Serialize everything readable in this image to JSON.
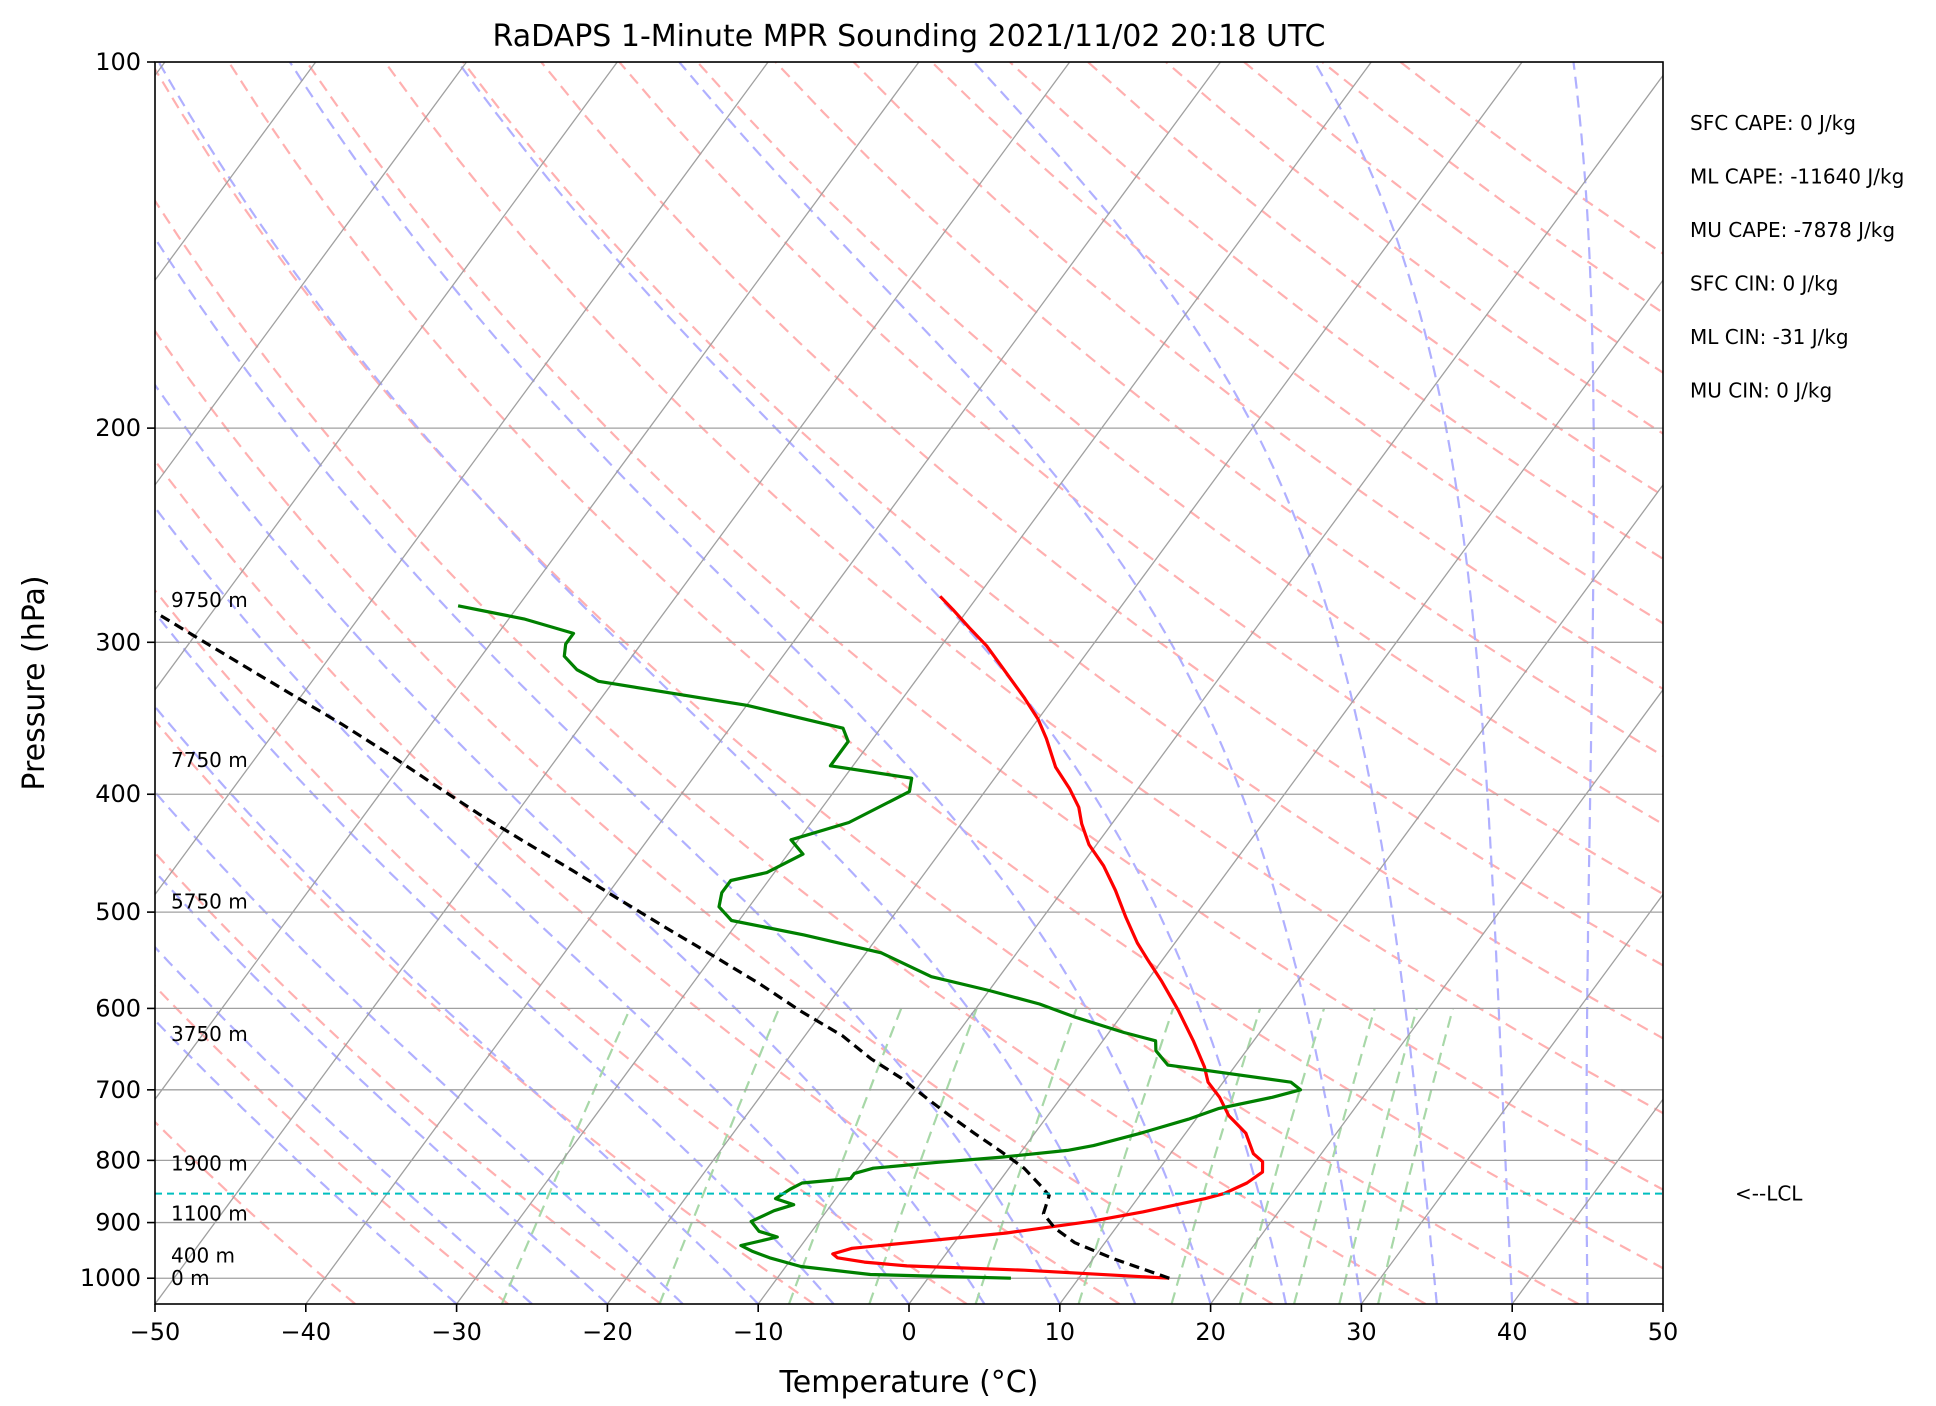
{
  "chart_data": {
    "type": "line",
    "title": "RaDAPS 1-Minute MPR Sounding 2021/11/02 20:18 UTC",
    "xlabel": "Temperature (°C)",
    "ylabel": "Pressure (hPa)",
    "xlim": [
      -50,
      50
    ],
    "ylim": [
      1050,
      100
    ],
    "y_scale": "log",
    "x_ticks": [
      "−50",
      "−40",
      "−30",
      "−20",
      "−10",
      "0",
      "10",
      "20",
      "30",
      "40",
      "50"
    ],
    "y_ticks": [
      "100",
      "200",
      "300",
      "400",
      "500",
      "600",
      "700",
      "800",
      "900",
      "1000"
    ],
    "skew": "skew-T",
    "grid": true,
    "series": [
      {
        "role": "temperature",
        "color": "#ff0000",
        "points": [
          [
            16,
            1000
          ],
          [
            6,
            985
          ],
          [
            -2,
            977
          ],
          [
            -5,
            970
          ],
          [
            -7,
            962
          ],
          [
            -7.5,
            955
          ],
          [
            -6.5,
            945
          ],
          [
            -3,
            935
          ],
          [
            3,
            918
          ],
          [
            8,
            898
          ],
          [
            11,
            882
          ],
          [
            14.5,
            860
          ],
          [
            15.5,
            852
          ],
          [
            16.5,
            835
          ],
          [
            17,
            818
          ],
          [
            16.5,
            802
          ],
          [
            15.5,
            790
          ],
          [
            14,
            760
          ],
          [
            12,
            735
          ],
          [
            10.5,
            710
          ],
          [
            9,
            690
          ],
          [
            8,
            670
          ],
          [
            6,
            638
          ],
          [
            3.5,
            602
          ],
          [
            1,
            570
          ],
          [
            -1,
            547
          ],
          [
            -2.5,
            530
          ],
          [
            -4.5,
            505
          ],
          [
            -6.5,
            480
          ],
          [
            -8.5,
            458
          ],
          [
            -10.5,
            440
          ],
          [
            -12,
            423
          ],
          [
            -13,
            410
          ],
          [
            -14.5,
            396
          ],
          [
            -16.5,
            380
          ],
          [
            -18.5,
            360
          ],
          [
            -20,
            347
          ],
          [
            -22,
            333
          ],
          [
            -25,
            314
          ],
          [
            -27,
            302
          ],
          [
            -29,
            292
          ],
          [
            -31,
            282
          ],
          [
            -32.5,
            275
          ]
        ]
      },
      {
        "role": "dewpoint",
        "color": "#008000",
        "points": [
          [
            5.5,
            1000
          ],
          [
            -4,
            993
          ],
          [
            -9,
            978
          ],
          [
            -11.5,
            962
          ],
          [
            -13,
            950
          ],
          [
            -14,
            940
          ],
          [
            -12,
            925
          ],
          [
            -13.5,
            915
          ],
          [
            -14.5,
            898
          ],
          [
            -13.5,
            880
          ],
          [
            -12.5,
            870
          ],
          [
            -14,
            860
          ],
          [
            -13.5,
            845
          ],
          [
            -13,
            835
          ],
          [
            -10,
            828
          ],
          [
            -10,
            820
          ],
          [
            -9,
            812
          ],
          [
            -5,
            803
          ],
          [
            -1,
            795
          ],
          [
            3,
            785
          ],
          [
            4.5,
            778
          ],
          [
            7,
            760
          ],
          [
            9.5,
            740
          ],
          [
            11,
            725
          ],
          [
            14,
            710
          ],
          [
            15.5,
            700
          ],
          [
            14.5,
            690
          ],
          [
            5.5,
            668
          ],
          [
            4,
            650
          ],
          [
            3.5,
            638
          ],
          [
            1,
            628
          ],
          [
            -3,
            610
          ],
          [
            -6,
            595
          ],
          [
            -10,
            580
          ],
          [
            -14.5,
            565
          ],
          [
            -19,
            540
          ],
          [
            -25,
            522
          ],
          [
            -30.5,
            508
          ],
          [
            -32,
            495
          ],
          [
            -32.5,
            482
          ],
          [
            -32.5,
            471
          ],
          [
            -30.5,
            464
          ],
          [
            -29,
            448
          ],
          [
            -30.5,
            436
          ],
          [
            -27.5,
            422
          ],
          [
            -25,
            398
          ],
          [
            -25.5,
            388
          ],
          [
            -31.5,
            379
          ],
          [
            -31.5,
            362
          ],
          [
            -32.5,
            353
          ],
          [
            -40,
            338
          ],
          [
            -51,
            323
          ],
          [
            -53,
            316
          ],
          [
            -54.5,
            308
          ],
          [
            -55,
            301
          ],
          [
            -55,
            295
          ],
          [
            -59,
            287
          ],
          [
            -64,
            280
          ]
        ]
      },
      {
        "role": "parcel",
        "color": "#000000",
        "style": "dashed",
        "points": [
          [
            16,
            1000
          ],
          [
            11.5,
            965
          ],
          [
            8,
            935
          ],
          [
            6,
            910
          ],
          [
            4.5,
            885
          ],
          [
            4,
            855
          ],
          [
            3,
            840
          ],
          [
            1,
            812
          ],
          [
            -1.5,
            785
          ],
          [
            -4,
            760
          ],
          [
            -6.5,
            735
          ],
          [
            -9,
            710
          ],
          [
            -11.5,
            685
          ],
          [
            -14.5,
            660
          ],
          [
            -17.5,
            632
          ],
          [
            -21.5,
            603
          ],
          [
            -25.5,
            573
          ],
          [
            -30,
            543
          ],
          [
            -34.5,
            515
          ],
          [
            -39,
            488
          ],
          [
            -43.5,
            462
          ],
          [
            -48,
            438
          ],
          [
            -52.5,
            415
          ],
          [
            -57,
            392
          ],
          [
            -61.5,
            370
          ],
          [
            -66,
            350
          ],
          [
            -71,
            330
          ],
          [
            -76,
            311
          ],
          [
            -81,
            293
          ],
          [
            -86,
            276
          ]
        ]
      }
    ],
    "lcl": {
      "pressure": 852,
      "label": "<--LCL",
      "color": "#00bfbf"
    },
    "height_labels": [
      {
        "text": "9750 m",
        "pressure": 277
      },
      {
        "text": "7750 m",
        "pressure": 375
      },
      {
        "text": "5750 m",
        "pressure": 490
      },
      {
        "text": "3750 m",
        "pressure": 630
      },
      {
        "text": "1900 m",
        "pressure": 805
      },
      {
        "text": "1100 m",
        "pressure": 885
      },
      {
        "text": "400 m",
        "pressure": 958
      },
      {
        "text": "0 m",
        "pressure": 1000
      }
    ],
    "indices": [
      "SFC CAPE: 0 J/kg",
      "ML CAPE: -11640 J/kg",
      "MU CAPE: -7878 J/kg",
      "SFC CIN: 0 J/kg",
      "ML CIN: -31 J/kg",
      "MU CIN: 0 J/kg"
    ],
    "colors": {
      "isotherm": "#a0a0a0",
      "dry_adiabat": "#ffb0b0",
      "moist_adiabat": "#b0b0ff",
      "mixing_ratio": "#a8d8a8",
      "temperature": "#ff0000",
      "dewpoint": "#008000",
      "parcel": "#000000",
      "lcl": "#00bfbf"
    }
  }
}
